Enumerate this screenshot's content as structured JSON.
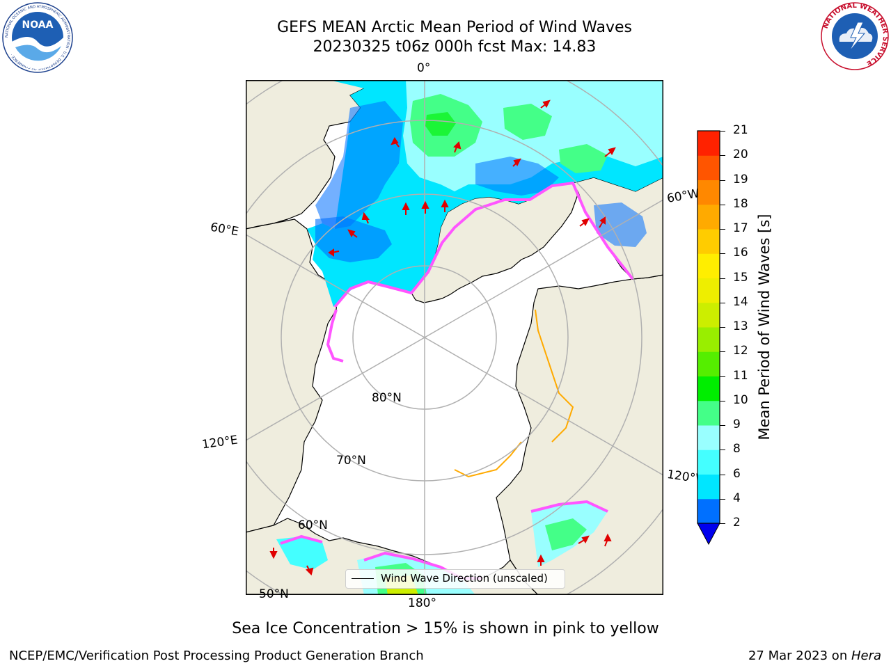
{
  "header": {
    "title_line1": "GEFS MEAN Arctic Mean Period of Wind Waves",
    "title_line2": "20230325 t06z 000h fcst   Max: 14.83",
    "left_logo": "NOAA",
    "left_logo_ring_text": "NATIONAL OCEANIC AND ATMOSPHERIC ADMINISTRATION · U.S. DEPARTMENT OF COMMERCE ·",
    "right_logo_ring_text": "NATIONAL WEATHER SERVICE"
  },
  "map": {
    "projection": "north-polar-stereographic",
    "colors": {
      "land": "#efedde",
      "ocean_no_data": "#ffffff",
      "grid": "#b0b0b0",
      "coast": "#000000",
      "arrow": "#e00000",
      "ice_edge": "#ff55ff"
    },
    "longitude_labels": {
      "lon_0": "0°",
      "lon_60w": "60°W",
      "lon_60e": "60°E",
      "lon_120e": "120°E",
      "lon_120w": "120°W",
      "lon_180": "180°"
    },
    "latitude_labels": {
      "lat_80": "80°N",
      "lat_70": "70°N",
      "lat_60": "60°N",
      "lat_50": "50°N"
    },
    "legend_entry": "Wind Wave Direction (unscaled)"
  },
  "colorbar": {
    "label": "Mean Period of Wind Waves [s]",
    "ticks": [
      "2",
      "4",
      "6",
      "8",
      "9",
      "10",
      "11",
      "12",
      "13",
      "14",
      "15",
      "16",
      "17",
      "18",
      "19",
      "20",
      "21"
    ],
    "colors": [
      "#0070ff",
      "#00e6ff",
      "#44ffff",
      "#99ffff",
      "#44ff88",
      "#00ee00",
      "#55ee00",
      "#99ee00",
      "#ccee00",
      "#eeee00",
      "#ffee00",
      "#ffcc00",
      "#ffaa00",
      "#ff8800",
      "#ff5500",
      "#ff2200"
    ],
    "under_color": "#0000ee",
    "extend": "min"
  },
  "note": "Sea Ice Concentration > 15% is shown in pink to yellow",
  "footer": {
    "left": "NCEP/EMC/Verification Post Processing Product Generation Branch",
    "right_date": "27 Mar 2023 on ",
    "right_host": "Hera"
  }
}
